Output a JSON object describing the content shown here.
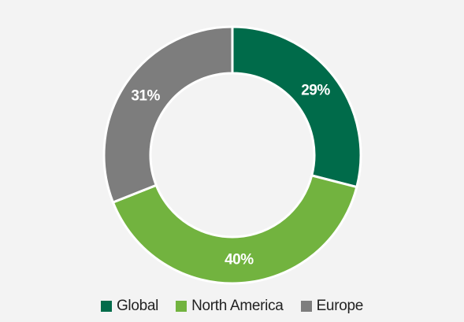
{
  "chart_data": {
    "type": "pie",
    "variant": "donut",
    "title": "",
    "categories": [
      "Global",
      "North America",
      "Europe"
    ],
    "values": [
      29,
      40,
      31
    ],
    "labels": [
      "29%",
      "40%",
      "31%"
    ],
    "colors": [
      "#006b4a",
      "#72b33f",
      "#7d7d7d"
    ],
    "legend": "bottom"
  }
}
